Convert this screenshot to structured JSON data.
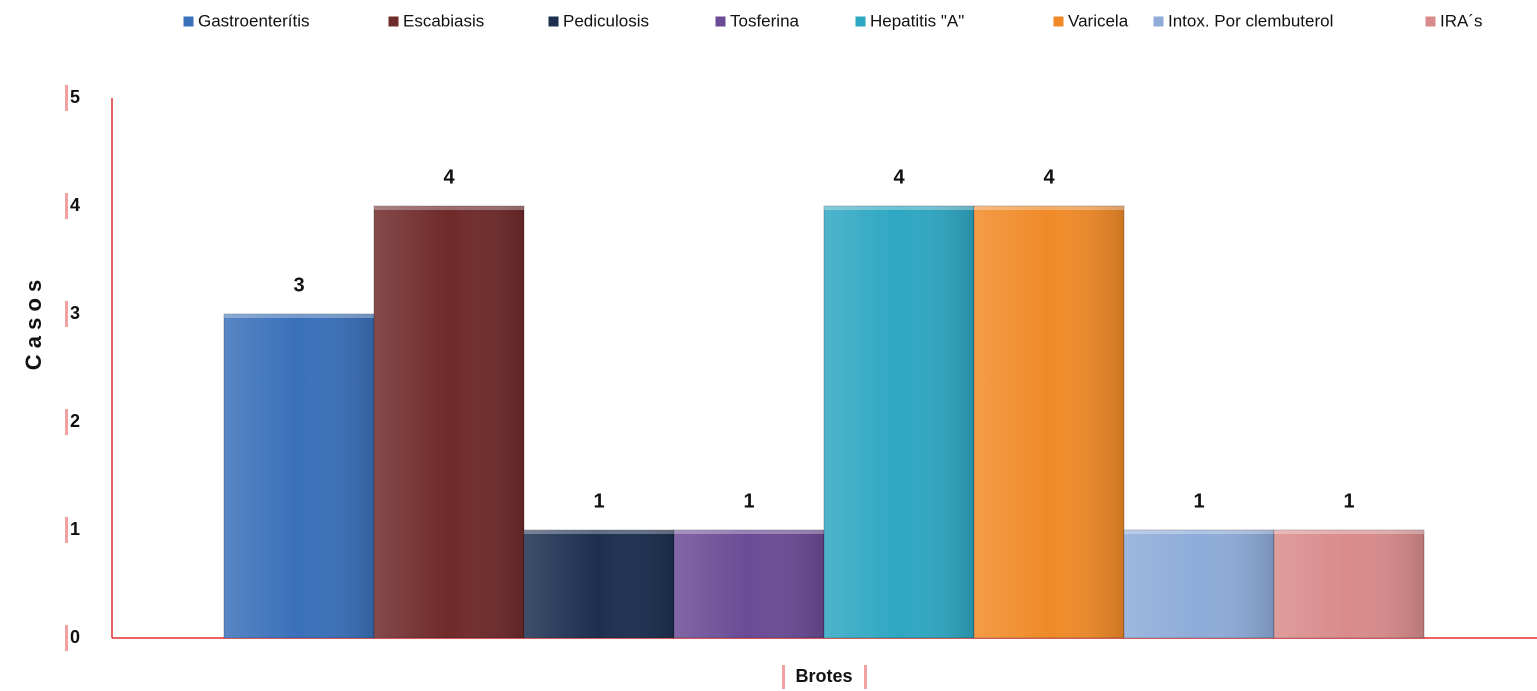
{
  "chart_data": {
    "type": "bar",
    "categories": [
      null
    ],
    "series": [
      {
        "name": "Gastroenterítis",
        "color": "#3a70ba",
        "values": [
          3
        ]
      },
      {
        "name": "Escabiasis",
        "color": "#6f2a2a",
        "values": [
          4
        ]
      },
      {
        "name": "Pediculosis",
        "color": "#1c2f50",
        "values": [
          1
        ]
      },
      {
        "name": "Tosferina",
        "color": "#6b4b95",
        "values": [
          1
        ]
      },
      {
        "name": "Hepatitis \"A\"",
        "color": "#2ea7c2",
        "values": [
          4
        ]
      },
      {
        "name": "Varicela",
        "color": "#f08a28",
        "values": [
          4
        ]
      },
      {
        "name": "Intox. Por clembuterol",
        "color": "#8eabd9",
        "values": [
          1
        ]
      },
      {
        "name": "IRA´s",
        "color": "#d98b8b",
        "values": [
          1
        ]
      }
    ],
    "xlabel": "Brotes",
    "ylabel": "C a s o s",
    "ylim": [
      0,
      5
    ],
    "yticks": [
      0,
      1,
      2,
      3,
      4,
      5
    ],
    "legend": "top",
    "grid": false
  }
}
